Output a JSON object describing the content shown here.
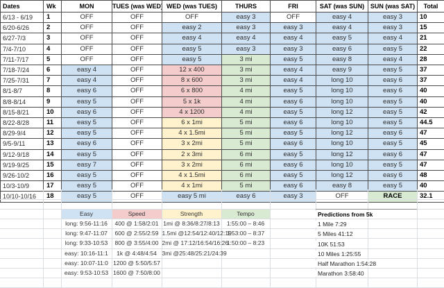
{
  "palette": {
    "blue": "#cfe2f3",
    "green": "#d9ead3",
    "red": "#f4cccc",
    "yellow": "#fff2cc",
    "white": "#ffffff"
  },
  "schedule": {
    "headers": [
      "Dates",
      "Wk",
      "MON",
      "TUES (was WED)",
      "WED (was TUES)",
      "THURS",
      "FRI",
      "SAT (was SUN)",
      "SUN (was SAT)",
      "Total"
    ],
    "rows": [
      {
        "dates": "6/13 - 6/19",
        "wk": "1",
        "cells": [
          {
            "t": "OFF",
            "c": "white"
          },
          {
            "t": "OFF",
            "c": "white"
          },
          {
            "t": "OFF",
            "c": "white"
          },
          {
            "t": "easy 3",
            "c": "blue"
          },
          {
            "t": "OFF",
            "c": "white"
          },
          {
            "t": "easy 4",
            "c": "blue"
          },
          {
            "t": "easy 3",
            "c": "blue"
          }
        ],
        "total": "10"
      },
      {
        "dates": "6/20-6/26",
        "wk": "2",
        "cells": [
          {
            "t": "OFF",
            "c": "white"
          },
          {
            "t": "OFF",
            "c": "white"
          },
          {
            "t": "easy 2",
            "c": "blue"
          },
          {
            "t": "easy 3",
            "c": "blue"
          },
          {
            "t": "easy 3",
            "c": "blue"
          },
          {
            "t": "easy 4",
            "c": "blue"
          },
          {
            "t": "easy 3",
            "c": "blue"
          }
        ],
        "total": "15"
      },
      {
        "dates": "6/27-7/3",
        "wk": "3",
        "cells": [
          {
            "t": "OFF",
            "c": "white"
          },
          {
            "t": "OFF",
            "c": "white"
          },
          {
            "t": "easy 4",
            "c": "blue"
          },
          {
            "t": "easy 4",
            "c": "blue"
          },
          {
            "t": "easy 4",
            "c": "blue"
          },
          {
            "t": "easy 5",
            "c": "blue"
          },
          {
            "t": "easy 4",
            "c": "blue"
          }
        ],
        "total": "21"
      },
      {
        "dates": "7/4-7/10",
        "wk": "4",
        "cells": [
          {
            "t": "OFF",
            "c": "white"
          },
          {
            "t": "OFF",
            "c": "white"
          },
          {
            "t": "easy 5",
            "c": "blue"
          },
          {
            "t": "easy 3",
            "c": "blue"
          },
          {
            "t": "easy 3",
            "c": "blue"
          },
          {
            "t": "easy 6",
            "c": "blue"
          },
          {
            "t": "easy 5",
            "c": "blue"
          }
        ],
        "total": "22"
      },
      {
        "dates": "7/11-7/17",
        "wk": "5",
        "cells": [
          {
            "t": "OFF",
            "c": "white"
          },
          {
            "t": "OFF",
            "c": "white"
          },
          {
            "t": "easy 5",
            "c": "blue"
          },
          {
            "t": "3 mi",
            "c": "green"
          },
          {
            "t": "easy 5",
            "c": "blue"
          },
          {
            "t": "easy 8",
            "c": "blue"
          },
          {
            "t": "easy 4",
            "c": "blue"
          }
        ],
        "total": "28"
      },
      {
        "dates": "7/18-7/24",
        "wk": "6",
        "cells": [
          {
            "t": "easy 4",
            "c": "blue"
          },
          {
            "t": "OFF",
            "c": "white"
          },
          {
            "t": "12 x 400",
            "c": "red"
          },
          {
            "t": "3 mi",
            "c": "green"
          },
          {
            "t": "easy 4",
            "c": "blue"
          },
          {
            "t": "easy 9",
            "c": "blue"
          },
          {
            "t": "easy 5",
            "c": "blue"
          }
        ],
        "total": "37"
      },
      {
        "dates": "7/25-7/31",
        "wk": "7",
        "cells": [
          {
            "t": "easy 4",
            "c": "blue"
          },
          {
            "t": "OFF",
            "c": "white"
          },
          {
            "t": "8 x 600",
            "c": "red"
          },
          {
            "t": "3 mi",
            "c": "green"
          },
          {
            "t": "easy 4",
            "c": "blue"
          },
          {
            "t": "long 10",
            "c": "blue"
          },
          {
            "t": "easy 6",
            "c": "blue"
          }
        ],
        "total": "37"
      },
      {
        "dates": "8/1-8/7",
        "wk": "8",
        "cells": [
          {
            "t": "easy 6",
            "c": "blue"
          },
          {
            "t": "OFF",
            "c": "white"
          },
          {
            "t": "6 x 800",
            "c": "red"
          },
          {
            "t": "4 mi",
            "c": "green"
          },
          {
            "t": "easy 5",
            "c": "blue"
          },
          {
            "t": "long 10",
            "c": "blue"
          },
          {
            "t": "easy 6",
            "c": "blue"
          }
        ],
        "total": "40"
      },
      {
        "dates": "8/8-8/14",
        "wk": "9",
        "cells": [
          {
            "t": "easy 5",
            "c": "blue"
          },
          {
            "t": "OFF",
            "c": "white"
          },
          {
            "t": "5 x 1k",
            "c": "red"
          },
          {
            "t": "4 mi",
            "c": "green"
          },
          {
            "t": "easy 6",
            "c": "blue"
          },
          {
            "t": "long 10",
            "c": "blue"
          },
          {
            "t": "easy 5",
            "c": "blue"
          }
        ],
        "total": "40"
      },
      {
        "dates": "8/15-8/21",
        "wk": "10",
        "cells": [
          {
            "t": "easy 6",
            "c": "blue"
          },
          {
            "t": "OFF",
            "c": "white"
          },
          {
            "t": "4 x 1200",
            "c": "red"
          },
          {
            "t": "4 mi",
            "c": "green"
          },
          {
            "t": "easy 5",
            "c": "blue"
          },
          {
            "t": "long 12",
            "c": "blue"
          },
          {
            "t": "easy 5",
            "c": "blue"
          }
        ],
        "total": "42"
      },
      {
        "dates": "8/22-8/28",
        "wk": "11",
        "cells": [
          {
            "t": "easy 5",
            "c": "blue"
          },
          {
            "t": "OFF",
            "c": "white"
          },
          {
            "t": "6 x 1mi",
            "c": "yellow"
          },
          {
            "t": "5 mi",
            "c": "green"
          },
          {
            "t": "easy 6",
            "c": "blue"
          },
          {
            "t": "long 10",
            "c": "blue"
          },
          {
            "t": "easy 5",
            "c": "blue"
          }
        ],
        "total": "44.5"
      },
      {
        "dates": "8/29-9/4",
        "wk": "12",
        "cells": [
          {
            "t": "easy 5",
            "c": "blue"
          },
          {
            "t": "OFF",
            "c": "white"
          },
          {
            "t": "4 x 1.5mi",
            "c": "yellow"
          },
          {
            "t": "5 mi",
            "c": "green"
          },
          {
            "t": "easy 5",
            "c": "blue"
          },
          {
            "t": "long 12",
            "c": "blue"
          },
          {
            "t": "easy 6",
            "c": "blue"
          }
        ],
        "total": "47"
      },
      {
        "dates": "9/5-9/11",
        "wk": "13",
        "cells": [
          {
            "t": "easy 6",
            "c": "blue"
          },
          {
            "t": "OFF",
            "c": "white"
          },
          {
            "t": "3 x 2mi",
            "c": "yellow"
          },
          {
            "t": "5 mi",
            "c": "green"
          },
          {
            "t": "easy 6",
            "c": "blue"
          },
          {
            "t": "long 10",
            "c": "blue"
          },
          {
            "t": "easy 5",
            "c": "blue"
          }
        ],
        "total": "45"
      },
      {
        "dates": "9/12-9/18",
        "wk": "14",
        "cells": [
          {
            "t": "easy 5",
            "c": "blue"
          },
          {
            "t": "OFF",
            "c": "white"
          },
          {
            "t": "2 x 3mi",
            "c": "yellow"
          },
          {
            "t": "6 mi",
            "c": "green"
          },
          {
            "t": "easy 5",
            "c": "blue"
          },
          {
            "t": "long 12",
            "c": "blue"
          },
          {
            "t": "easy 6",
            "c": "blue"
          }
        ],
        "total": "47"
      },
      {
        "dates": "9/19-9/25",
        "wk": "15",
        "cells": [
          {
            "t": "easy 7",
            "c": "blue"
          },
          {
            "t": "OFF",
            "c": "white"
          },
          {
            "t": "3 x 2mi",
            "c": "yellow"
          },
          {
            "t": "6 mi",
            "c": "green"
          },
          {
            "t": "easy 6",
            "c": "blue"
          },
          {
            "t": "long 10",
            "c": "blue"
          },
          {
            "t": "easy 5",
            "c": "blue"
          }
        ],
        "total": "47"
      },
      {
        "dates": "9/26-10/2",
        "wk": "16",
        "cells": [
          {
            "t": "easy 5",
            "c": "blue"
          },
          {
            "t": "OFF",
            "c": "white"
          },
          {
            "t": "4 x 1.5mi",
            "c": "yellow"
          },
          {
            "t": "6 mi",
            "c": "green"
          },
          {
            "t": "easy 5",
            "c": "blue"
          },
          {
            "t": "long 12",
            "c": "blue"
          },
          {
            "t": "easy 6",
            "c": "blue"
          }
        ],
        "total": "48"
      },
      {
        "dates": "10/3-10/9",
        "wk": "17",
        "cells": [
          {
            "t": "easy 5",
            "c": "blue"
          },
          {
            "t": "OFF",
            "c": "white"
          },
          {
            "t": "4 x 1mi",
            "c": "yellow"
          },
          {
            "t": "5 mi",
            "c": "green"
          },
          {
            "t": "easy 6",
            "c": "blue"
          },
          {
            "t": "easy 8",
            "c": "blue"
          },
          {
            "t": "easy 5",
            "c": "blue"
          }
        ],
        "total": "40"
      },
      {
        "dates": "10/10-10/16",
        "wk": "18",
        "cells": [
          {
            "t": "easy 5",
            "c": "blue"
          },
          {
            "t": "OFF",
            "c": "white"
          },
          {
            "t": "easy 5 mi",
            "c": "blue"
          },
          {
            "t": "easy 6",
            "c": "blue"
          },
          {
            "t": "easy 3",
            "c": "blue"
          },
          {
            "t": "OFF",
            "c": "white"
          },
          {
            "t": "RACE",
            "c": "green",
            "b": true
          }
        ],
        "total": "32.1"
      }
    ]
  },
  "legend": {
    "columns": [
      {
        "label": "Easy",
        "color": "blue",
        "values": [
          "long: 9:56-11:16",
          "long: 9:47-11:07",
          "long: 9:33-10:53",
          "easy: 10:16-11:1",
          "easy: 10:07-11:0",
          "easy: 9:53-10:53"
        ]
      },
      {
        "label": "Speed",
        "color": "red",
        "values": [
          "400 @ 1:58/2:01",
          "600 @ 2:55/2:59",
          "800 @ 3:55/4:00",
          "1k @ 4:48/4:54",
          "1200 @ 5:50/5:57",
          "1600 @ 7:50/8:00"
        ]
      },
      {
        "label": "Strength",
        "color": "yellow",
        "values": [
          "1mi @ 8:36/8:27/8:13",
          "1.5mi @12:54/12:40/12:19",
          "2mi @ 17:12/16:54/16:26",
          "3mi @25:48/25:21/24:39"
        ]
      },
      {
        "label": "Tempo",
        "color": "green",
        "values": [
          "1:55:00 – 8:46",
          "1:53:00 – 8:37",
          "1:50:00 – 8:23"
        ]
      }
    ]
  },
  "predictions": {
    "title": "Predictions from 5k",
    "items": [
      "1 Mile 7:29",
      "5 Miles 41:12",
      "10K 51:53",
      "10 Miles 1:25:55",
      "Half Marathon 1:54:28",
      "Marathon 3:58:40"
    ]
  }
}
